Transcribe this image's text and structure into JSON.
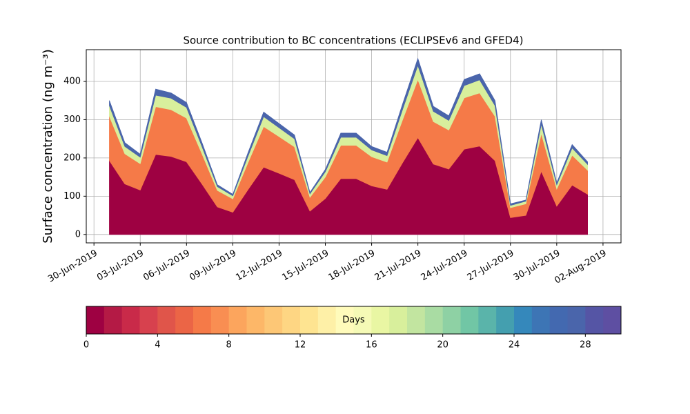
{
  "chart_data": {
    "type": "stacked_area",
    "title": "Source contribution to BC concentrations (ECLIPSEv6 and GFED4)",
    "ylabel": "Surface concentration (ng m⁻³)",
    "x": [
      "2019-07-01",
      "2019-07-02",
      "2019-07-03",
      "2019-07-04",
      "2019-07-05",
      "2019-07-06",
      "2019-07-07",
      "2019-07-08",
      "2019-07-09",
      "2019-07-10",
      "2019-07-11",
      "2019-07-12",
      "2019-07-13",
      "2019-07-14",
      "2019-07-15",
      "2019-07-16",
      "2019-07-17",
      "2019-07-18",
      "2019-07-19",
      "2019-07-20",
      "2019-07-21",
      "2019-07-22",
      "2019-07-23",
      "2019-07-24",
      "2019-07-25",
      "2019-07-26",
      "2019-07-27",
      "2019-07-28",
      "2019-07-29",
      "2019-07-30",
      "2019-07-31",
      "2019-08-01"
    ],
    "series": [
      {
        "color": "#9e0142",
        "values": [
          193,
          132,
          116,
          209,
          204,
          190,
          132,
          72,
          58,
          118,
          176,
          160,
          143,
          61,
          94,
          146,
          146,
          127,
          118,
          187,
          253,
          184,
          171,
          223,
          231,
          193,
          44,
          50,
          165,
          74,
          129,
          105
        ]
      },
      {
        "color": "#f57a48",
        "values": [
          116,
          79,
          69,
          125,
          122,
          114,
          79,
          43,
          35,
          71,
          106,
          96,
          86,
          36,
          56,
          87,
          87,
          76,
          71,
          112,
          152,
          111,
          102,
          134,
          139,
          116,
          26,
          30,
          99,
          45,
          78,
          63
        ]
      },
      {
        "color": "#d8ef9c",
        "values": [
          28,
          19,
          17,
          30,
          30,
          28,
          19,
          10,
          8,
          17,
          26,
          23,
          21,
          9,
          14,
          21,
          21,
          18,
          17,
          27,
          37,
          27,
          25,
          32,
          34,
          28,
          6,
          7,
          24,
          11,
          19,
          15
        ]
      },
      {
        "color": "#4a65ab",
        "values": [
          13,
          10,
          8,
          16,
          14,
          13,
          10,
          5,
          4,
          9,
          12,
          11,
          10,
          4,
          6,
          11,
          11,
          9,
          9,
          14,
          18,
          13,
          12,
          16,
          16,
          13,
          4,
          3,
          12,
          5,
          9,
          7
        ]
      }
    ],
    "xlim": [
      "2019-06-29T12:00",
      "2019-08-03T04:00"
    ],
    "xticks": [
      {
        "value": "2019-06-30",
        "label": "30-Jun-2019"
      },
      {
        "value": "2019-07-03",
        "label": "03-Jul-2019"
      },
      {
        "value": "2019-07-06",
        "label": "06-Jul-2019"
      },
      {
        "value": "2019-07-09",
        "label": "09-Jul-2019"
      },
      {
        "value": "2019-07-12",
        "label": "12-Jul-2019"
      },
      {
        "value": "2019-07-15",
        "label": "15-Jul-2019"
      },
      {
        "value": "2019-07-18",
        "label": "18-Jul-2019"
      },
      {
        "value": "2019-07-21",
        "label": "21-Jul-2019"
      },
      {
        "value": "2019-07-24",
        "label": "24-Jul-2019"
      },
      {
        "value": "2019-07-27",
        "label": "27-Jul-2019"
      },
      {
        "value": "2019-07-30",
        "label": "30-Jul-2019"
      },
      {
        "value": "2019-08-02",
        "label": "02-Aug-2019"
      }
    ],
    "ylim": [
      -22,
      483
    ],
    "yticks": [
      0,
      100,
      200,
      300,
      400
    ],
    "grid": true,
    "colorbar": {
      "label": "Days",
      "lim": [
        0,
        30
      ],
      "ticks": [
        0,
        4,
        8,
        12,
        16,
        20,
        24,
        28
      ],
      "colors": [
        "#9e0142",
        "#b41a45",
        "#c92a49",
        "#d7414e",
        "#e0554a",
        "#eb6546",
        "#f57a48",
        "#f98e52",
        "#fca55d",
        "#fdb768",
        "#fdc776",
        "#fed683",
        "#fee491",
        "#fef0a7",
        "#fffbbb",
        "#f5fab6",
        "#e9f6a3",
        "#d8ef9c",
        "#c2e5a0",
        "#a9dca3",
        "#8ed1a4",
        "#71c6a5",
        "#5ab4aa",
        "#449faf",
        "#3588bb",
        "#3d75b5",
        "#4369b0",
        "#4a65ab",
        "#5555a5",
        "#5e4fa2"
      ]
    }
  }
}
